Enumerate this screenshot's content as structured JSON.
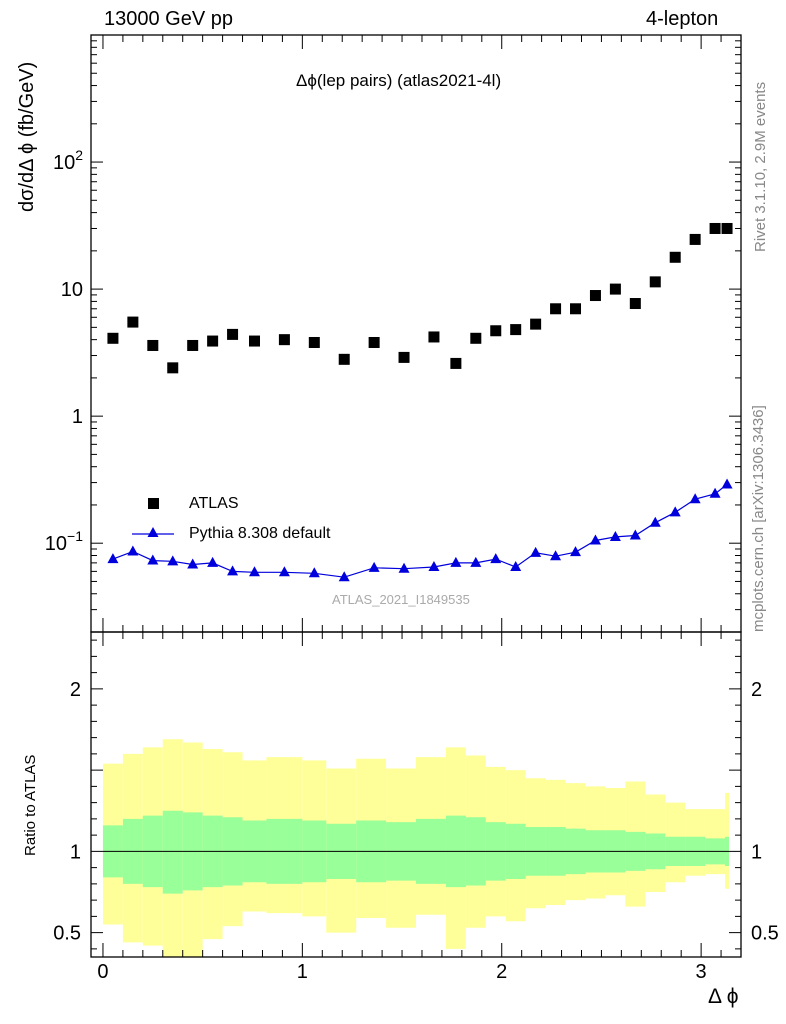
{
  "header": {
    "left": "13000 GeV pp",
    "right": "4-lepton"
  },
  "side_labels": {
    "rivet": "Rivet 3.1.10,  2.9M events",
    "mcplots": "mcplots.cern.ch [arXiv:1306.3436]"
  },
  "plot_title": "Δϕ(lep pairs) (atlas2021-4l)",
  "watermark": "ATLAS_2021_I1849535",
  "colors": {
    "data": "#000000",
    "mc": "#0000dd",
    "band_inner": "#99ff99",
    "band_outer": "#ffff99"
  },
  "chart_data": [
    {
      "type": "scatter",
      "ylabel": "dσ/dΔ ϕ (fb/GeV)",
      "xlabel": "",
      "yscale": "log",
      "ylim": [
        0.02,
        1000
      ],
      "xlim": [
        -0.06,
        3.2
      ],
      "yticks": [
        {
          "value": 0.1,
          "base": "10",
          "exp": "−1"
        },
        {
          "value": 1,
          "base": "1",
          "exp": ""
        },
        {
          "value": 10,
          "base": "10",
          "exp": ""
        },
        {
          "value": 100,
          "base": "10",
          "exp": "2"
        }
      ],
      "legend": {
        "position": "lower-left",
        "entries": [
          "ATLAS",
          "Pythia 8.308 default"
        ]
      },
      "series": [
        {
          "name": "ATLAS",
          "marker": "square",
          "x": [
            0.05,
            0.15,
            0.25,
            0.35,
            0.45,
            0.55,
            0.65,
            0.76,
            0.91,
            1.06,
            1.21,
            1.36,
            1.51,
            1.66,
            1.77,
            1.87,
            1.97,
            2.07,
            2.17,
            2.27,
            2.37,
            2.47,
            2.57,
            2.67,
            2.77,
            2.87,
            2.97,
            3.07,
            3.13
          ],
          "y": [
            4.1,
            5.5,
            3.6,
            2.4,
            3.6,
            3.9,
            4.4,
            3.9,
            4.0,
            3.8,
            2.8,
            3.8,
            2.9,
            4.2,
            2.6,
            4.1,
            4.7,
            4.8,
            5.3,
            7.0,
            7.0,
            8.9,
            10.0,
            7.7,
            11.4,
            17.8,
            24.6,
            30.0,
            30.0
          ]
        },
        {
          "name": "Pythia 8.308 default",
          "marker": "triangle",
          "x": [
            0.05,
            0.15,
            0.25,
            0.35,
            0.45,
            0.55,
            0.65,
            0.76,
            0.91,
            1.06,
            1.21,
            1.36,
            1.51,
            1.66,
            1.77,
            1.87,
            1.97,
            2.07,
            2.17,
            2.27,
            2.37,
            2.47,
            2.57,
            2.67,
            2.77,
            2.87,
            2.97,
            3.07,
            3.13
          ],
          "y": [
            0.075,
            0.086,
            0.073,
            0.072,
            0.068,
            0.07,
            0.06,
            0.059,
            0.059,
            0.058,
            0.054,
            0.064,
            0.063,
            0.065,
            0.07,
            0.07,
            0.075,
            0.065,
            0.084,
            0.079,
            0.085,
            0.105,
            0.112,
            0.115,
            0.145,
            0.175,
            0.222,
            0.245,
            0.29
          ]
        }
      ]
    },
    {
      "type": "area",
      "ylabel": "Ratio to ATLAS",
      "xlabel": "Δ ϕ",
      "ylim": [
        0.35,
        2.35
      ],
      "xlim": [
        -0.06,
        3.2
      ],
      "yticks": [
        0.5,
        1,
        2
      ],
      "xticks": [
        0,
        1,
        2,
        3
      ],
      "bin_edges": [
        0,
        0.1,
        0.2,
        0.3,
        0.4,
        0.5,
        0.6,
        0.7,
        0.82,
        1.0,
        1.12,
        1.27,
        1.42,
        1.57,
        1.72,
        1.82,
        1.92,
        2.02,
        2.12,
        2.22,
        2.32,
        2.42,
        2.52,
        2.62,
        2.72,
        2.82,
        2.92,
        3.02,
        3.12,
        3.14
      ],
      "inner_band": {
        "upper": [
          1.16,
          1.2,
          1.22,
          1.25,
          1.24,
          1.22,
          1.21,
          1.19,
          1.2,
          1.19,
          1.17,
          1.19,
          1.18,
          1.2,
          1.22,
          1.21,
          1.18,
          1.17,
          1.15,
          1.15,
          1.14,
          1.13,
          1.13,
          1.12,
          1.11,
          1.09,
          1.09,
          1.08,
          1.09
        ],
        "lower": [
          0.84,
          0.8,
          0.78,
          0.74,
          0.76,
          0.78,
          0.79,
          0.81,
          0.8,
          0.81,
          0.83,
          0.81,
          0.82,
          0.8,
          0.78,
          0.79,
          0.82,
          0.83,
          0.85,
          0.85,
          0.86,
          0.87,
          0.87,
          0.88,
          0.89,
          0.91,
          0.91,
          0.92,
          0.91
        ]
      },
      "outer_band": {
        "upper": [
          1.54,
          1.6,
          1.64,
          1.69,
          1.67,
          1.63,
          1.61,
          1.56,
          1.58,
          1.56,
          1.51,
          1.57,
          1.51,
          1.58,
          1.64,
          1.59,
          1.52,
          1.5,
          1.45,
          1.44,
          1.42,
          1.4,
          1.39,
          1.43,
          1.35,
          1.3,
          1.26,
          1.26,
          1.36
        ],
        "lower": [
          0.55,
          0.44,
          0.42,
          0.3,
          0.34,
          0.46,
          0.54,
          0.63,
          0.62,
          0.6,
          0.5,
          0.59,
          0.53,
          0.61,
          0.4,
          0.53,
          0.6,
          0.57,
          0.65,
          0.67,
          0.7,
          0.71,
          0.73,
          0.66,
          0.75,
          0.81,
          0.85,
          0.86,
          0.77
        ]
      },
      "reference_line": 1
    }
  ]
}
